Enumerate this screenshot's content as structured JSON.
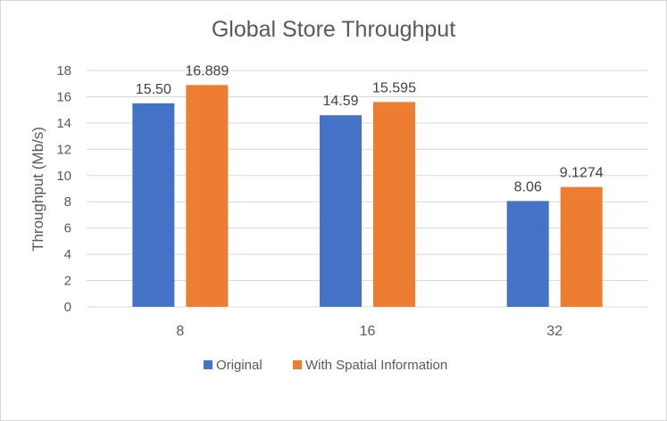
{
  "chart_data": {
    "type": "bar",
    "title": "Global Store Throughput",
    "xlabel": "",
    "ylabel": "Throughput (Mb/s)",
    "categories": [
      "8",
      "16",
      "32"
    ],
    "series": [
      {
        "name": "Original",
        "values": [
          15.5,
          14.59,
          8.06
        ],
        "labels": [
          "15.50",
          "14.59",
          "8.06"
        ],
        "color": "#4472c4"
      },
      {
        "name": "With Spatial Information",
        "values": [
          16.889,
          15.595,
          9.1274
        ],
        "labels": [
          "16.889",
          "15.595",
          "9.1274"
        ],
        "color": "#ed7d31"
      }
    ],
    "ylim": [
      0,
      18
    ],
    "yticks": [
      "0",
      "2",
      "4",
      "6",
      "8",
      "10",
      "12",
      "14",
      "16",
      "18"
    ],
    "grid": true,
    "legend_position": "bottom"
  },
  "colors": {
    "grid": "#d9d9d9",
    "text": "#595959",
    "label": "#404040"
  }
}
